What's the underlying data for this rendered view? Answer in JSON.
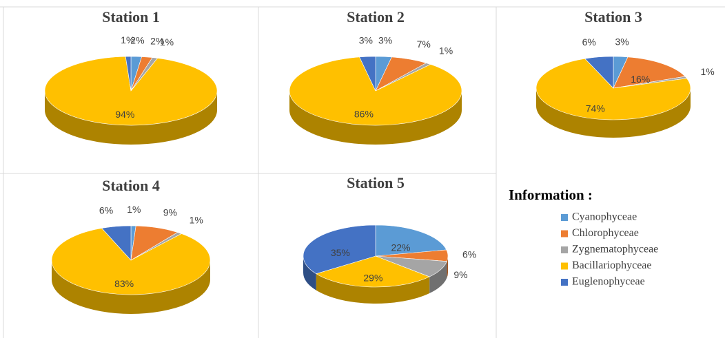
{
  "chart_data": [
    {
      "type": "pie",
      "title": "Station 1",
      "categories": [
        "Cyanophyceae",
        "Chlorophyceae",
        "Zygnematophyceae",
        "Bacillariophyceae",
        "Euglenophyceae"
      ],
      "values": [
        2,
        2,
        1,
        94,
        1
      ],
      "value_labels": [
        "2%",
        "2%",
        "1%",
        "94%",
        "1%"
      ],
      "colors": [
        "#5b9bd5",
        "#ed7d31",
        "#a5a5a5",
        "#ffc000",
        "#4472c4"
      ]
    },
    {
      "type": "pie",
      "title": "Station 2",
      "categories": [
        "Cyanophyceae",
        "Chlorophyceae",
        "Zygnematophyceae",
        "Bacillariophyceae",
        "Euglenophyceae"
      ],
      "values": [
        3,
        7,
        1,
        86,
        3
      ],
      "value_labels": [
        "3%",
        "7%",
        "1%",
        "86%",
        "3%"
      ],
      "colors": [
        "#5b9bd5",
        "#ed7d31",
        "#a5a5a5",
        "#ffc000",
        "#4472c4"
      ]
    },
    {
      "type": "pie",
      "title": "Station 3",
      "categories": [
        "Cyanophyceae",
        "Chlorophyceae",
        "Zygnematophyceae",
        "Bacillariophyceae",
        "Euglenophyceae"
      ],
      "values": [
        3,
        16,
        1,
        74,
        6
      ],
      "value_labels": [
        "3%",
        "16%",
        "1%",
        "74%",
        "6%"
      ],
      "colors": [
        "#5b9bd5",
        "#ed7d31",
        "#a5a5a5",
        "#ffc000",
        "#4472c4"
      ]
    },
    {
      "type": "pie",
      "title": "Station 4",
      "categories": [
        "Cyanophyceae",
        "Chlorophyceae",
        "Zygnematophyceae",
        "Bacillariophyceae",
        "Euglenophyceae"
      ],
      "values": [
        1,
        9,
        1,
        83,
        6
      ],
      "value_labels": [
        "1%",
        "9%",
        "1%",
        "83%",
        "6%"
      ],
      "colors": [
        "#5b9bd5",
        "#ed7d31",
        "#a5a5a5",
        "#ffc000",
        "#4472c4"
      ]
    },
    {
      "type": "pie",
      "title": "Station 5",
      "categories": [
        "Cyanophyceae",
        "Chlorophyceae",
        "Zygnematophyceae",
        "Bacillariophyceae",
        "Euglenophyceae"
      ],
      "values": [
        22,
        6,
        9,
        29,
        35
      ],
      "value_labels": [
        "22%",
        "6%",
        "9%",
        "29%",
        "35%"
      ],
      "colors": [
        "#5b9bd5",
        "#ed7d31",
        "#a5a5a5",
        "#ffc000",
        "#4472c4"
      ]
    }
  ],
  "legend_title": "Information :"
}
